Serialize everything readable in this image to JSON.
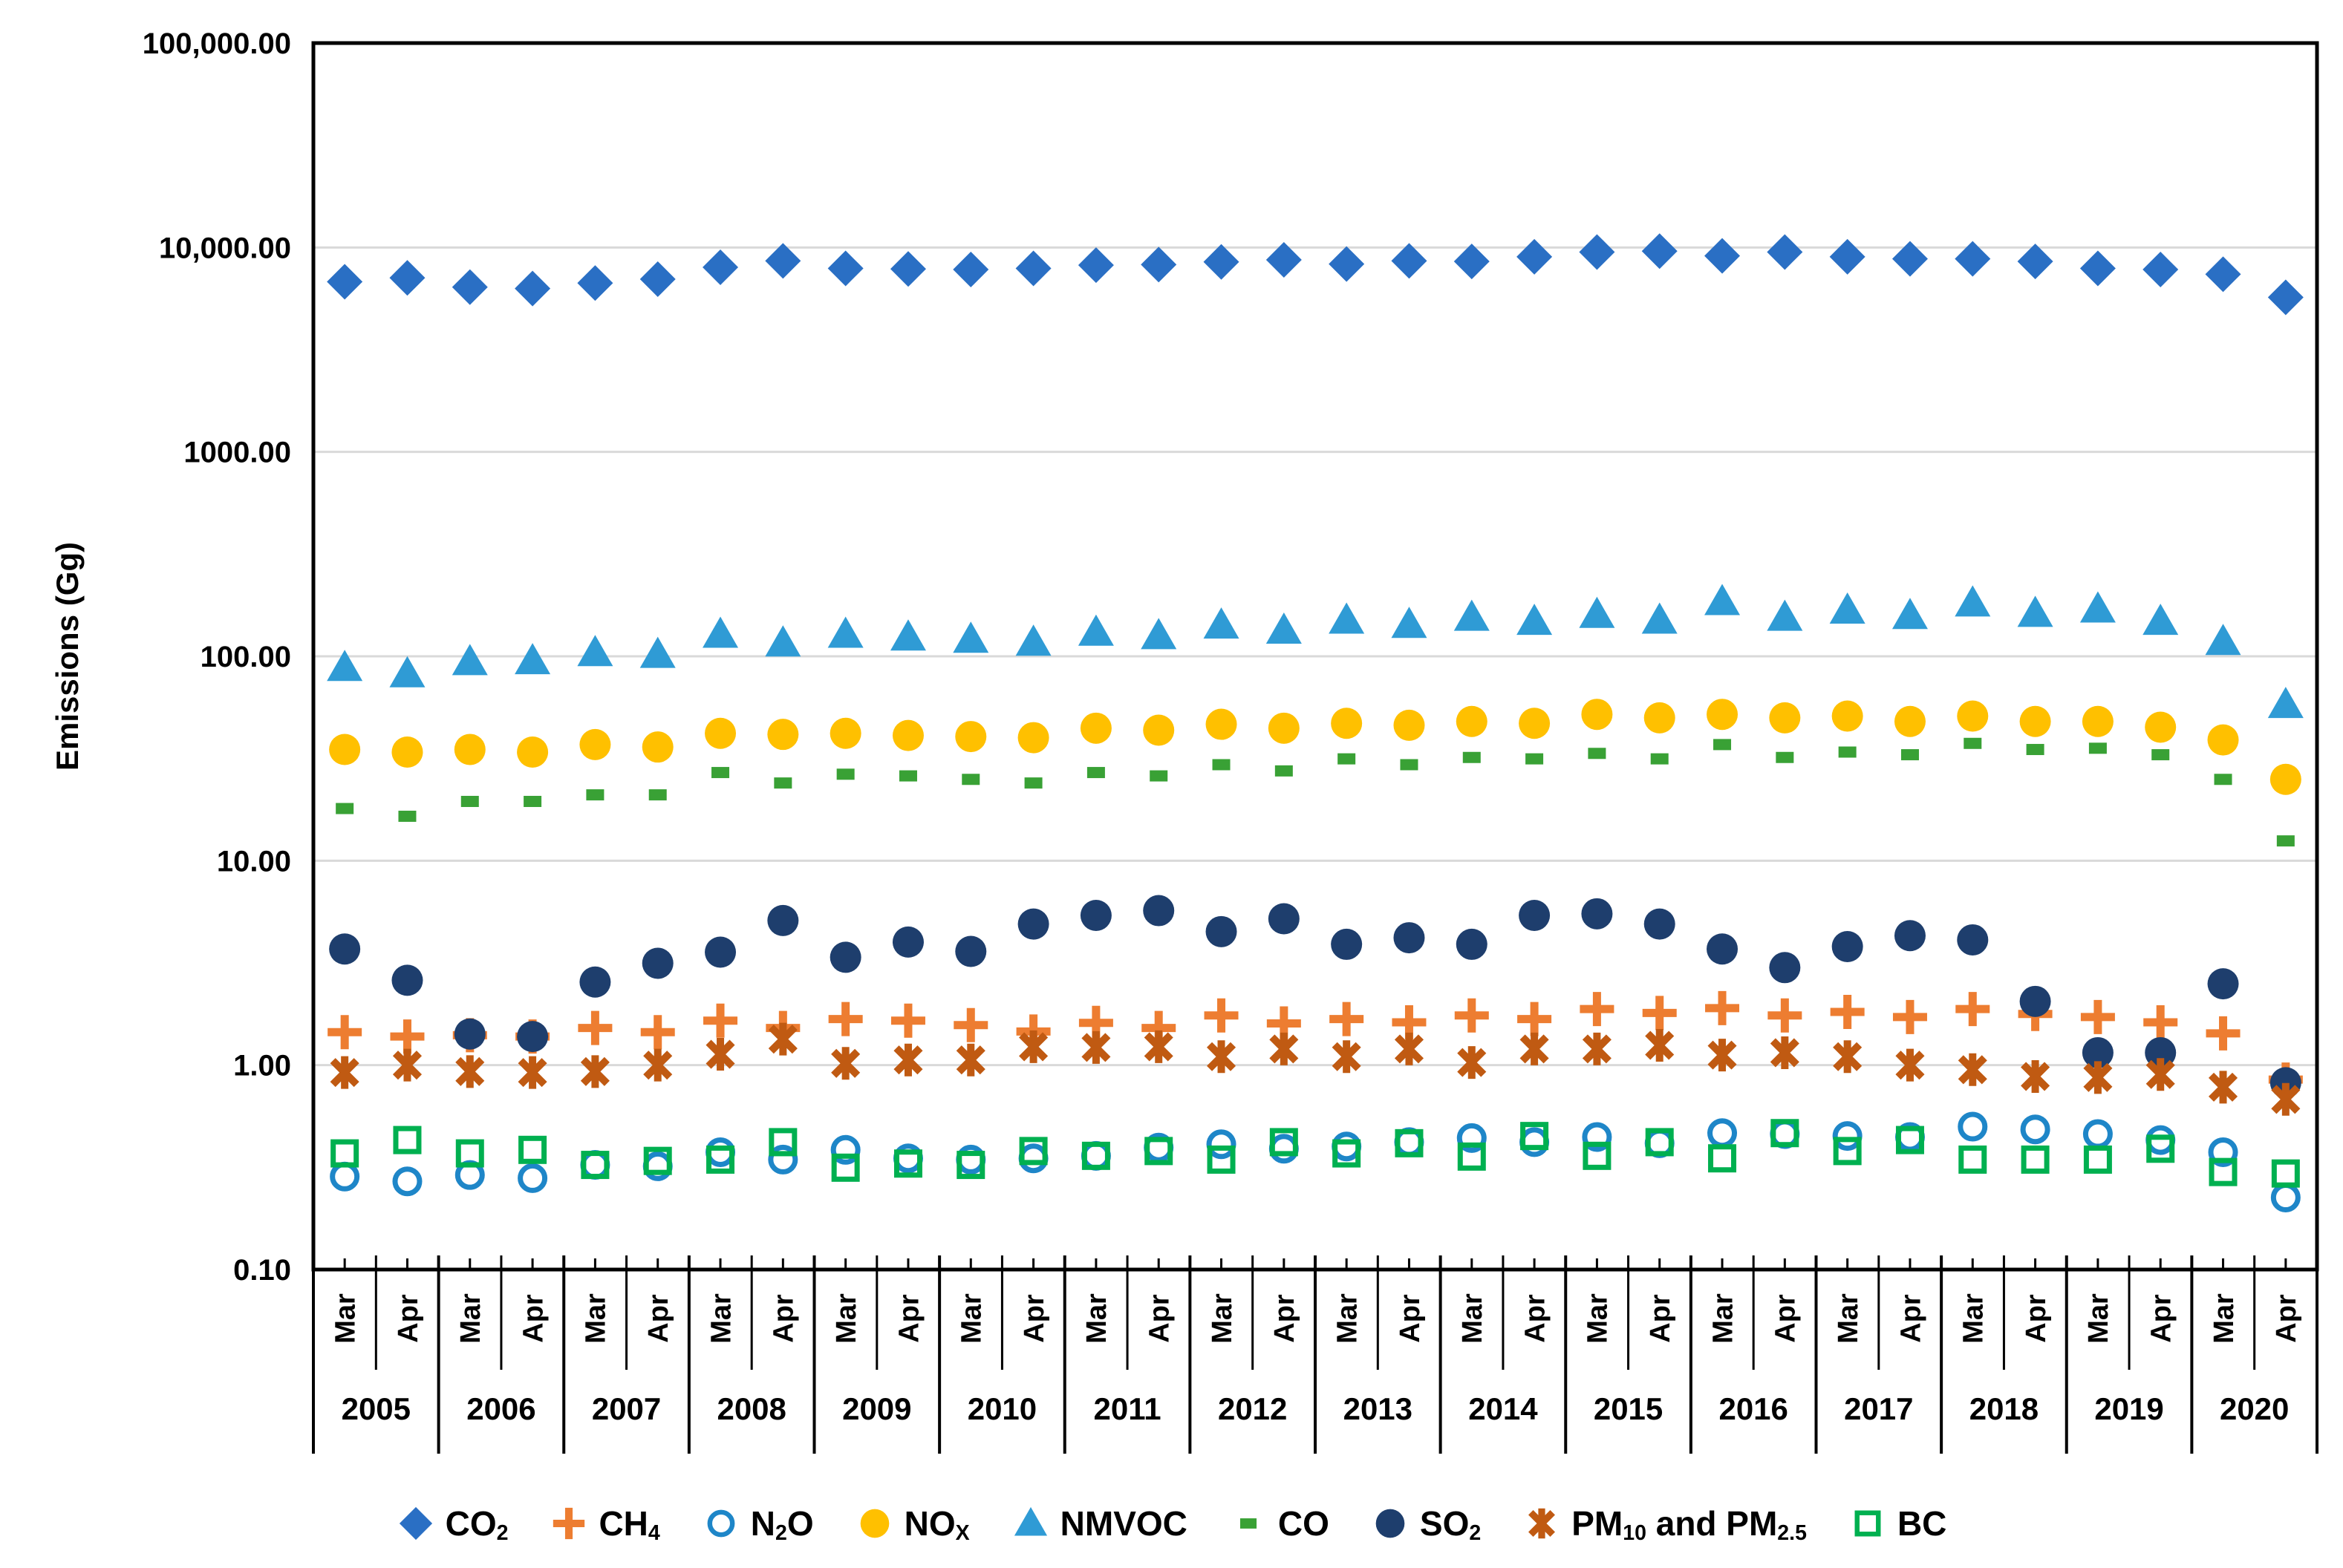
{
  "chart_data": {
    "type": "scatter",
    "title": "",
    "xlabel": "",
    "ylabel": "Emissions (Gg)",
    "y_scale": "log",
    "ylim": [
      0.1,
      100000
    ],
    "grid": "horizontal-decades",
    "legend_position": "bottom",
    "y_ticks": [
      {
        "label": "100,000.00",
        "value": 100000
      },
      {
        "label": "10,000.00",
        "value": 10000
      },
      {
        "label": "1000.00",
        "value": 1000
      },
      {
        "label": "100.00",
        "value": 100
      },
      {
        "label": "10.00",
        "value": 10
      },
      {
        "label": "1.00",
        "value": 1
      },
      {
        "label": "0.10",
        "value": 0.1
      }
    ],
    "x_axis": {
      "years": [
        "2005",
        "2006",
        "2007",
        "2008",
        "2009",
        "2010",
        "2011",
        "2012",
        "2013",
        "2014",
        "2015",
        "2016",
        "2017",
        "2018",
        "2019",
        "2020"
      ],
      "month_labels": [
        "Mar",
        "Apr"
      ]
    },
    "series": [
      {
        "id": "co2",
        "marker": "diamond",
        "color": "#2A6FC4",
        "label_segments": [
          {
            "t": "CO"
          },
          {
            "s": "2"
          }
        ],
        "values": [
          6800,
          7100,
          6400,
          6300,
          6700,
          7000,
          8000,
          8600,
          7900,
          7850,
          7800,
          7900,
          8200,
          8250,
          8500,
          8700,
          8300,
          8600,
          8550,
          9000,
          9500,
          9600,
          9100,
          9500,
          9000,
          8800,
          8800,
          8550,
          7900,
          7800,
          7400,
          5700
        ]
      },
      {
        "id": "ch4",
        "marker": "plus",
        "color": "#ED7D31",
        "label_segments": [
          {
            "t": "CH"
          },
          {
            "s": "4"
          }
        ],
        "values": [
          1.45,
          1.38,
          1.4,
          1.38,
          1.52,
          1.45,
          1.65,
          1.52,
          1.68,
          1.65,
          1.57,
          1.46,
          1.61,
          1.52,
          1.75,
          1.6,
          1.68,
          1.62,
          1.75,
          1.68,
          1.88,
          1.8,
          1.9,
          1.75,
          1.82,
          1.72,
          1.88,
          1.78,
          1.72,
          1.62,
          1.43,
          0.85
        ]
      },
      {
        "id": "n2o",
        "marker": "circle-open",
        "color": "#1E86C8",
        "label_segments": [
          {
            "t": "N"
          },
          {
            "s": "2"
          },
          {
            "t": "O"
          }
        ],
        "values": [
          0.285,
          0.27,
          0.29,
          0.28,
          0.325,
          0.32,
          0.375,
          0.345,
          0.385,
          0.35,
          0.345,
          0.35,
          0.36,
          0.395,
          0.41,
          0.39,
          0.4,
          0.42,
          0.44,
          0.42,
          0.445,
          0.415,
          0.465,
          0.46,
          0.45,
          0.445,
          0.5,
          0.485,
          0.46,
          0.43,
          0.375,
          0.225
        ]
      },
      {
        "id": "nox",
        "marker": "circle",
        "color": "#FFC000",
        "label_segments": [
          {
            "t": "NO"
          },
          {
            "s": "X"
          }
        ],
        "values": [
          35,
          34,
          35,
          34,
          37,
          36,
          42,
          41.5,
          42,
          41,
          40.5,
          40,
          44.5,
          43.5,
          46.5,
          44.5,
          47,
          46,
          48,
          47,
          52,
          50,
          52,
          50,
          51,
          48,
          51,
          48,
          48,
          45,
          39,
          25
        ]
      },
      {
        "id": "nmvoc",
        "marker": "triangle",
        "color": "#2F9BD5",
        "label_segments": [
          {
            "t": "NMVOC"
          }
        ],
        "values": [
          88,
          82,
          94,
          95,
          104,
          102,
          128,
          116,
          128,
          124,
          121,
          117,
          131,
          126,
          142,
          134,
          150,
          143,
          155,
          148,
          160,
          150,
          185,
          155,
          168,
          158,
          182,
          162,
          170,
          148,
          118,
          58
        ]
      },
      {
        "id": "co",
        "marker": "dash",
        "color": "#39A135",
        "label_segments": [
          {
            "t": "CO"
          }
        ],
        "values": [
          18,
          16.5,
          19.5,
          19.5,
          21,
          21,
          27,
          24,
          26.5,
          26,
          25,
          24,
          27,
          26,
          29.5,
          27.5,
          31.5,
          29.5,
          32,
          31.5,
          33.5,
          31.5,
          37,
          32,
          34,
          33,
          37.5,
          35,
          35.5,
          33,
          25,
          12.5
        ]
      },
      {
        "id": "so2",
        "marker": "circle",
        "color": "#1E3E6D",
        "label_segments": [
          {
            "t": "SO"
          },
          {
            "s": "2"
          }
        ],
        "values": [
          3.7,
          2.6,
          1.42,
          1.38,
          2.55,
          3.15,
          3.57,
          5.1,
          3.37,
          4.0,
          3.6,
          4.9,
          5.4,
          5.7,
          4.5,
          5.2,
          3.9,
          4.2,
          3.9,
          5.4,
          5.5,
          4.9,
          3.7,
          3.0,
          3.8,
          4.3,
          4.1,
          2.05,
          1.15,
          1.15,
          2.5,
          0.82
        ]
      },
      {
        "id": "pm",
        "marker": "asterisk",
        "color": "#C05A12",
        "label_segments": [
          {
            "t": "PM"
          },
          {
            "s": "10"
          },
          {
            "t": " and PM"
          },
          {
            "s": "2.5"
          }
        ],
        "values": [
          0.92,
          1.0,
          0.93,
          0.92,
          0.93,
          1.0,
          1.13,
          1.34,
          1.02,
          1.06,
          1.06,
          1.23,
          1.22,
          1.23,
          1.1,
          1.2,
          1.1,
          1.2,
          1.03,
          1.2,
          1.2,
          1.25,
          1.12,
          1.15,
          1.1,
          1.0,
          0.95,
          0.88,
          0.87,
          0.9,
          0.78,
          0.68
        ]
      },
      {
        "id": "bc",
        "marker": "square-open",
        "color": "#00B050",
        "label_segments": [
          {
            "t": "BC"
          }
        ],
        "values": [
          0.37,
          0.43,
          0.37,
          0.385,
          0.325,
          0.34,
          0.345,
          0.42,
          0.315,
          0.33,
          0.325,
          0.38,
          0.36,
          0.38,
          0.345,
          0.42,
          0.37,
          0.415,
          0.357,
          0.45,
          0.36,
          0.42,
          0.35,
          0.465,
          0.38,
          0.43,
          0.345,
          0.345,
          0.345,
          0.39,
          0.3,
          0.295
        ]
      }
    ],
    "colors": {
      "gridline": "#D9D9D9",
      "frame": "#000000",
      "text": "#000000"
    }
  }
}
